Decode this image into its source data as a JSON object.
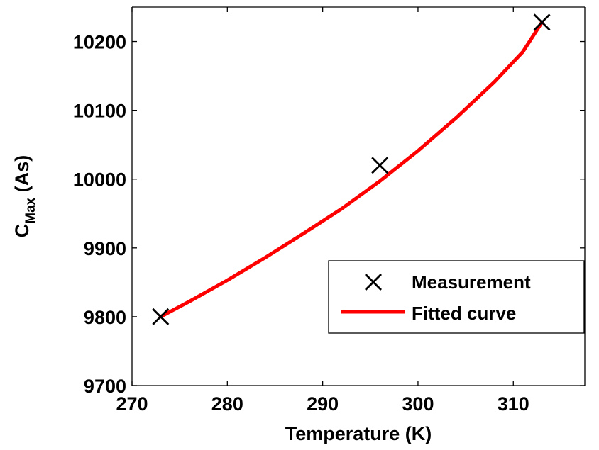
{
  "chart_data": {
    "type": "line",
    "xlabel": "Temperature (K)",
    "ylabel": "C",
    "ylabel_subscript": "Max",
    "ylabel_unit": " (As)",
    "xlim": [
      270,
      317.5
    ],
    "ylim": [
      9700,
      10250
    ],
    "x_ticks": [
      270,
      280,
      290,
      300,
      310
    ],
    "y_ticks": [
      9700,
      9800,
      9900,
      10000,
      10100,
      10200
    ],
    "grid": false,
    "legend_position": "center-right",
    "series": [
      {
        "name": "Measurement",
        "kind": "scatter",
        "marker": "x",
        "color": "#000000",
        "x": [
          273,
          296,
          313
        ],
        "y": [
          9800,
          10020,
          10228
        ]
      },
      {
        "name": "Fitted curve",
        "kind": "line",
        "color": "#ff0000",
        "x": [
          273,
          276,
          280,
          284,
          288,
          292,
          296,
          300,
          304,
          308,
          311,
          313
        ],
        "y": [
          9800,
          9822,
          9853,
          9886,
          9921,
          9957,
          9997,
          10041,
          10089,
          10141,
          10185,
          10228
        ]
      }
    ]
  }
}
